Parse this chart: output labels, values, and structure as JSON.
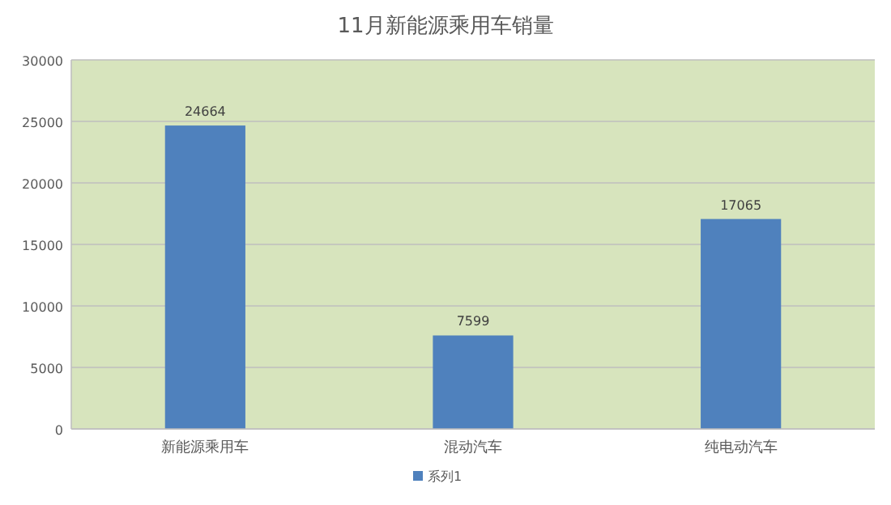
{
  "chart_data": {
    "type": "bar",
    "title": "11月新能源乘用车销量",
    "categories": [
      "新能源乘用车",
      "混动汽车",
      "纯电动汽车"
    ],
    "series": [
      {
        "name": "系列1",
        "color": "#4f81bd",
        "values": [
          24664,
          7599,
          17065
        ]
      }
    ],
    "ylim": [
      0,
      30000
    ],
    "yticks": [
      0,
      5000,
      10000,
      15000,
      20000,
      25000,
      30000
    ],
    "grid": "y",
    "legend": "bottom",
    "data_labels": true
  }
}
